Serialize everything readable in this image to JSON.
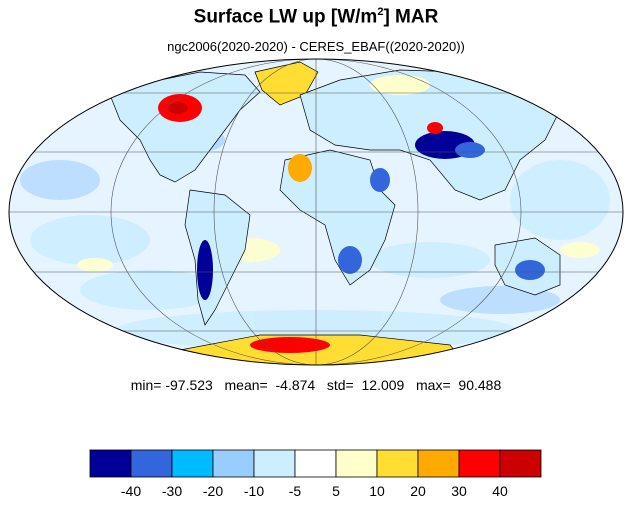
{
  "title": {
    "main": "Surface LW up [W/m",
    "sup": "2",
    "suffix": "]  MAR"
  },
  "subtitle": "ngc2006(2020-2020) - CERES_EBAF((2020-2020))",
  "stats": {
    "min_label": "min=",
    "min": "-97.523",
    "mean_label": "mean=",
    "mean": "-4.874",
    "std_label": "std=",
    "std": "12.009",
    "max_label": "max=",
    "max": "90.488"
  },
  "colorbar": {
    "colors": [
      "#000099",
      "#3366dd",
      "#00bbff",
      "#99ccff",
      "#cceeff",
      "#ffffff",
      "#ffffcc",
      "#ffdd33",
      "#ffaa00",
      "#ff0000",
      "#cc0000"
    ],
    "tick_labels": [
      "-40",
      "-30",
      "-20",
      "-10",
      "-5",
      "5",
      "10",
      "20",
      "30",
      "40"
    ]
  },
  "colors": {
    "ocean_base": "#e6f4ff",
    "land_base": "#ffffff",
    "coast": "#000000",
    "grid": "#555555"
  }
}
